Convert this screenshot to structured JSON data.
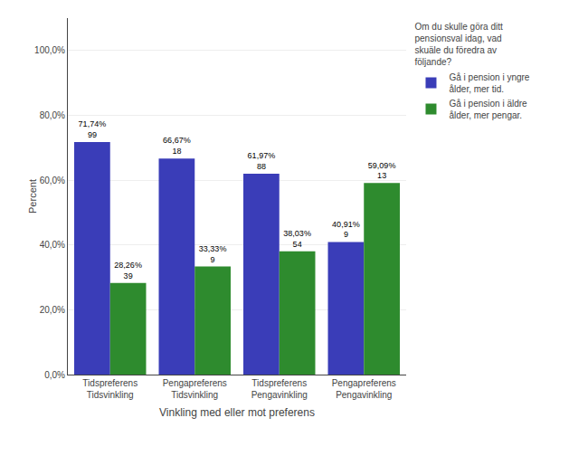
{
  "chart_data": {
    "type": "bar",
    "categories": [
      "Tidspreferens\nTidsvinkling",
      "Pengapreferens\nTidsvinkling",
      "Tidspreferens\nPengavinkling",
      "Pengapreferens\nPengavinkling"
    ],
    "series": [
      {
        "name": "Gå i pension i yngre\nålder, mer tid.",
        "color": "#3a3db8",
        "values": [
          71.74,
          66.67,
          61.97,
          40.91
        ],
        "value_labels": [
          "71,74%",
          "66,67%",
          "61,97%",
          "40,91%"
        ],
        "counts": [
          99,
          18,
          88,
          9
        ]
      },
      {
        "name": "Gå i pension i äldre\nålder, mer pengar.",
        "color": "#2e8b2e",
        "values": [
          28.26,
          33.33,
          38.03,
          59.09
        ],
        "value_labels": [
          "28,26%",
          "33,33%",
          "38,03%",
          "59,09%"
        ],
        "counts": [
          39,
          9,
          54,
          13
        ]
      }
    ],
    "xlabel": "Vinkling med eller mot preferens",
    "ylabel": "Percent",
    "legend_title": "Om du skulle göra ditt\npensionsval idag, vad\nskuäle du föredra av\nföljande?",
    "legend": "right",
    "ylim": [
      0,
      110
    ],
    "yticks": [
      {
        "value": 0,
        "label": "0,0%"
      },
      {
        "value": 20,
        "label": "20,0%"
      },
      {
        "value": 40,
        "label": "40,0%"
      },
      {
        "value": 60,
        "label": "60,0%"
      },
      {
        "value": 80,
        "label": "80,0%"
      },
      {
        "value": 100,
        "label": "100,0%"
      }
    ],
    "grid": true,
    "data_labels": true
  }
}
